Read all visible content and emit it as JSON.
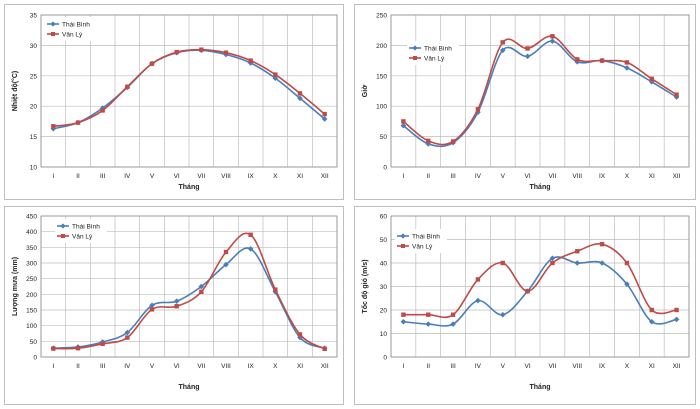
{
  "chart_data": [
    {
      "type": "line",
      "categories": [
        "I",
        "II",
        "III",
        "IV",
        "V",
        "VI",
        "VII",
        "VIII",
        "IX",
        "X",
        "XI",
        "XII"
      ],
      "series": [
        {
          "name": "Thái Bình",
          "color": "#4a7ebb",
          "marker": "diamond",
          "values": [
            16.3,
            17.3,
            19.7,
            23.1,
            27.0,
            28.8,
            29.2,
            28.5,
            27.1,
            24.6,
            21.3,
            17.9
          ]
        },
        {
          "name": "Văn Lý",
          "color": "#be4b48",
          "marker": "square",
          "values": [
            16.7,
            17.3,
            19.3,
            23.2,
            27.0,
            28.9,
            29.3,
            28.8,
            27.5,
            25.2,
            22.1,
            18.7
          ]
        }
      ],
      "xlabel": "Tháng",
      "ylabel": "Nhiệt độ(°C)",
      "ylim": [
        10,
        35
      ],
      "yticks": [
        10,
        15,
        20,
        25,
        30,
        35
      ],
      "grid": true,
      "legend": "top-left"
    },
    {
      "type": "line",
      "categories": [
        "I",
        "II",
        "III",
        "IV",
        "V",
        "VI",
        "VII",
        "VIII",
        "IX",
        "X",
        "XI",
        "XII"
      ],
      "series": [
        {
          "name": "Thái Bình",
          "color": "#4a7ebb",
          "marker": "diamond",
          "values": [
            68,
            38,
            40,
            90,
            192,
            182,
            207,
            173,
            175,
            163,
            140,
            115
          ]
        },
        {
          "name": "Văn Lý",
          "color": "#be4b48",
          "marker": "square",
          "values": [
            75,
            43,
            42,
            95,
            205,
            195,
            215,
            177,
            175,
            172,
            145,
            119
          ]
        }
      ],
      "xlabel": "Tháng",
      "ylabel": "Giờ",
      "ylim": [
        0,
        250
      ],
      "yticks": [
        0,
        50,
        100,
        150,
        200,
        250
      ],
      "grid": true,
      "legend": "top-left"
    },
    {
      "type": "line",
      "categories": [
        "I",
        "II",
        "III",
        "IV",
        "V",
        "VI",
        "VII",
        "VIII",
        "IX",
        "X",
        "XI",
        "XII"
      ],
      "series": [
        {
          "name": "Thái Bình",
          "color": "#4a7ebb",
          "marker": "diamond",
          "values": [
            28,
            32,
            48,
            78,
            165,
            178,
            225,
            295,
            345,
            208,
            62,
            28
          ]
        },
        {
          "name": "Văn Lý",
          "color": "#be4b48",
          "marker": "square",
          "values": [
            27,
            28,
            42,
            62,
            152,
            162,
            208,
            335,
            390,
            215,
            72,
            26
          ]
        }
      ],
      "xlabel": "Tháng",
      "ylabel": "Lượng mưa (mm)",
      "ylim": [
        0,
        450
      ],
      "yticks": [
        0,
        50,
        100,
        150,
        200,
        250,
        300,
        350,
        400,
        450
      ],
      "grid": true,
      "legend": "top-left"
    },
    {
      "type": "line",
      "categories": [
        "I",
        "II",
        "III",
        "IV",
        "V",
        "VI",
        "VII",
        "VIII",
        "IX",
        "X",
        "XI",
        "XII"
      ],
      "series": [
        {
          "name": "Thái Bình",
          "color": "#4a7ebb",
          "marker": "diamond",
          "values": [
            15,
            14,
            14,
            24,
            18,
            28,
            42,
            40,
            40,
            31,
            15,
            16
          ]
        },
        {
          "name": "Văn Lý",
          "color": "#be4b48",
          "marker": "square",
          "values": [
            18,
            18,
            18,
            33,
            40,
            28,
            40,
            45,
            48,
            40,
            20,
            20
          ]
        }
      ],
      "xlabel": "Tháng",
      "ylabel": "Tốc độ gió (m/s)",
      "ylim": [
        0,
        60
      ],
      "yticks": [
        0,
        10,
        20,
        30,
        40,
        50,
        60
      ],
      "grid": true,
      "legend": "top-left"
    }
  ]
}
